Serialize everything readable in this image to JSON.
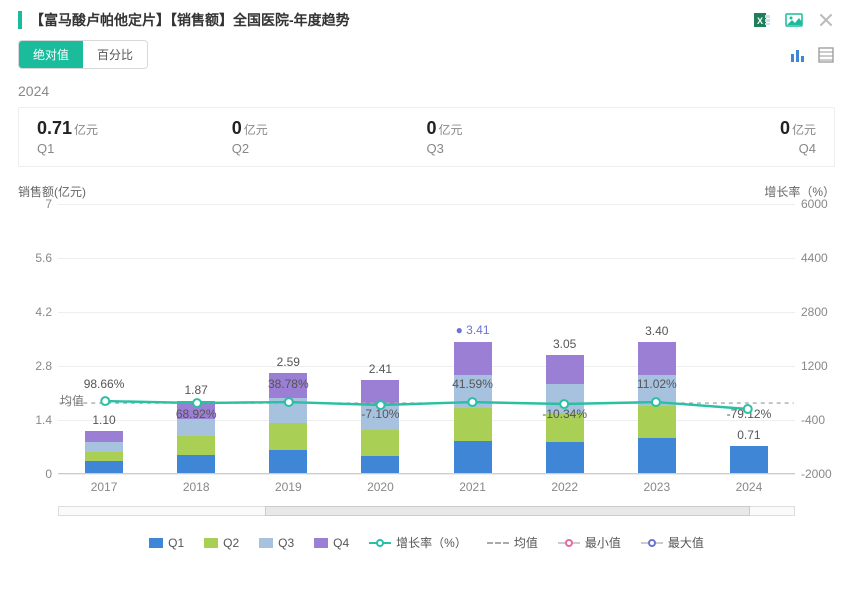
{
  "header": {
    "title": "【富马酸卢帕他定片】【销售额】全国医院-年度趋势",
    "accent_color": "#1abc9c"
  },
  "tabs": {
    "absolute": "绝对值",
    "percent": "百分比",
    "active": 0
  },
  "summary": {
    "year": "2024",
    "unit": "亿元",
    "cells": [
      {
        "value": "0.71",
        "quarter": "Q1"
      },
      {
        "value": "0",
        "quarter": "Q2"
      },
      {
        "value": "0",
        "quarter": "Q3"
      },
      {
        "value": "0",
        "quarter": "Q4"
      }
    ]
  },
  "chart": {
    "type": "bar-stacked+line",
    "y_left": {
      "title": "销售额(亿元)",
      "min": 0,
      "max": 7,
      "ticks": [
        0,
        1.4,
        2.8,
        4.2,
        5.6,
        7
      ]
    },
    "y_right": {
      "title": "增长率（%）",
      "min": -2000,
      "max": 6000,
      "ticks": [
        -2000,
        -400,
        1200,
        2800,
        4400,
        6000
      ]
    },
    "colors": {
      "Q1": "#3f87d6",
      "Q2": "#a9cf54",
      "Q3": "#a6c2df",
      "Q4": "#9b7fd4",
      "growth_line": "#2bbfa3",
      "avg_line": "#aaaaaa",
      "min_marker": "#e66aa0",
      "max_marker": "#6b74d6",
      "grid": "#eeeeee",
      "bg": "#ffffff"
    },
    "avg_label": "均值",
    "years": [
      {
        "label": "2017",
        "stack": [
          0.3,
          0.25,
          0.25,
          0.3
        ],
        "total_label": "1.10",
        "growth_label": "98.66%",
        "growth_val": 98.66
      },
      {
        "label": "2018",
        "stack": [
          0.48,
          0.47,
          0.46,
          0.46
        ],
        "total_label": "1.87",
        "growth_label": "68.92%",
        "growth_val": 68.92
      },
      {
        "label": "2019",
        "stack": [
          0.6,
          0.7,
          0.64,
          0.65
        ],
        "total_label": "2.59",
        "growth_label": "38.78%",
        "growth_val": 38.78
      },
      {
        "label": "2020",
        "stack": [
          0.45,
          0.66,
          0.65,
          0.65
        ],
        "total_label": "2.41",
        "growth_label": "-7.10%",
        "growth_val": -7.1
      },
      {
        "label": "2021",
        "stack": [
          0.83,
          0.86,
          0.86,
          0.86
        ],
        "total_label": "3.41",
        "growth_label": "41.59%",
        "growth_val": 41.59,
        "is_max": true
      },
      {
        "label": "2022",
        "stack": [
          0.8,
          0.75,
          0.75,
          0.75
        ],
        "total_label": "3.05",
        "growth_label": "-10.34%",
        "growth_val": -10.34
      },
      {
        "label": "2023",
        "stack": [
          0.9,
          0.85,
          0.8,
          0.85
        ],
        "total_label": "3.40",
        "growth_label": "11.02%",
        "growth_val": 11.02
      },
      {
        "label": "2024",
        "stack": [
          0.71,
          0,
          0,
          0
        ],
        "total_label": "0.71",
        "growth_label": "-79.12%",
        "growth_val": -79.12
      }
    ],
    "legend": {
      "q1": "Q1",
      "q2": "Q2",
      "q3": "Q3",
      "q4": "Q4",
      "growth": "增长率（%）",
      "avg": "均值",
      "min": "最小值",
      "max": "最大值"
    },
    "scroll": {
      "thumb_left_pct": 28,
      "thumb_width_pct": 66
    }
  }
}
